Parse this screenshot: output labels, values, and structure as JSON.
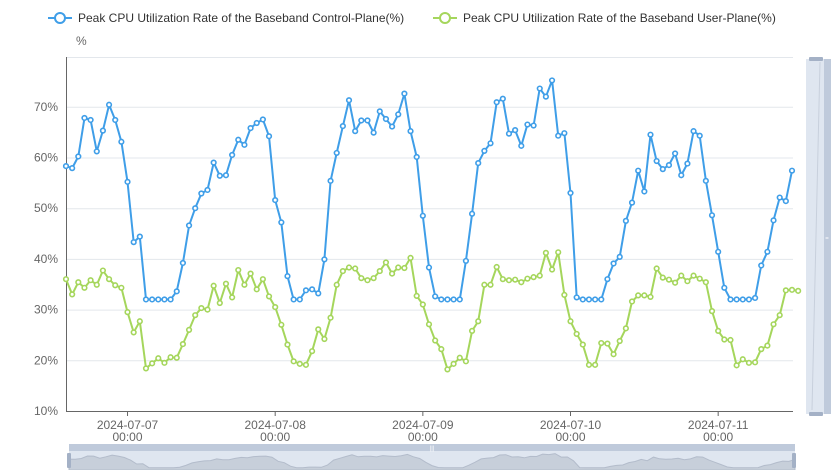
{
  "chart_data": {
    "type": "line",
    "title": "",
    "ylabel": "%",
    "xlabel": "",
    "ylim": [
      10,
      80
    ],
    "yticks": [
      "10%",
      "20%",
      "30%",
      "40%",
      "50%",
      "60%",
      "70%"
    ],
    "ytick_values": [
      10,
      20,
      30,
      40,
      50,
      60,
      70
    ],
    "grid": true,
    "legend_position": "top",
    "x_start": "2024-07-06 14:00",
    "x_interval": "1 hour",
    "xticks": [
      {
        "date": "2024-07-07",
        "time": "00:00",
        "index": 10
      },
      {
        "date": "2024-07-08",
        "time": "00:00",
        "index": 34
      },
      {
        "date": "2024-07-09",
        "time": "00:00",
        "index": 58
      },
      {
        "date": "2024-07-10",
        "time": "00:00",
        "index": 82
      },
      {
        "date": "2024-07-11",
        "time": "00:00",
        "index": 106
      }
    ],
    "series": [
      {
        "name": "Peak CPU Utilization Rate of the Baseband Control-Plane(%)",
        "color": "#3f9ee8",
        "values": [
          58.3,
          57.9,
          60.2,
          67.8,
          67.4,
          61.2,
          65.3,
          70.4,
          67.4,
          63.1,
          55.2,
          43.3,
          44.4,
          32,
          32,
          32,
          32,
          32,
          33.6,
          39.2,
          46.6,
          50,
          52.9,
          53.6,
          59,
          56.4,
          56.5,
          60.5,
          63.5,
          62.5,
          65.8,
          66.8,
          67.5,
          64.2,
          51.6,
          47.2,
          36.6,
          32,
          32,
          33.8,
          34,
          33.2,
          39.9,
          55.4,
          60.9,
          66.2,
          71.3,
          65.2,
          67.3,
          67.3,
          64.9,
          69.1,
          67.6,
          66.1,
          68.5,
          72.6,
          65.2,
          60.1,
          48.5,
          38.3,
          32.6,
          32,
          32,
          32,
          32,
          39.6,
          48.9,
          58.9,
          61.3,
          62.8,
          70.9,
          71.6,
          64.7,
          65.4,
          62.3,
          66.5,
          66.3,
          73.6,
          72,
          75.2,
          64.3,
          64.8,
          53,
          32.4,
          32,
          32,
          32,
          32,
          36,
          39.1,
          40.4,
          47.5,
          51.1,
          57.4,
          53.3,
          64.5,
          59.3,
          57.7,
          58.5,
          60.8,
          56.5,
          58.8,
          65.2,
          64.3,
          55.4,
          48.6,
          41.4,
          34.3,
          32,
          32,
          32,
          32,
          32.3,
          38.7,
          41.4,
          47.6,
          52.1,
          51.4,
          57.4
        ]
      },
      {
        "name": "Peak CPU Utilization Rate of the Baseband User-Plane(%)",
        "color": "#a5d65c",
        "values": [
          36,
          33,
          35.4,
          34.3,
          35.8,
          34.9,
          37.7,
          36,
          34.8,
          34.3,
          29.5,
          25.5,
          27.7,
          18.4,
          19.4,
          20.4,
          19.5,
          20.6,
          20.5,
          23.2,
          26,
          28.9,
          30.3,
          30,
          34.7,
          31.3,
          35.1,
          32.4,
          37.8,
          34.9,
          37.1,
          34,
          36,
          32.6,
          30.5,
          27,
          23.1,
          19.8,
          19.3,
          19.1,
          21.8,
          26.1,
          24.2,
          28.4,
          34.9,
          37.6,
          38.3,
          38.1,
          36.2,
          35.8,
          36.2,
          37.6,
          39.3,
          37.1,
          38.3,
          38.2,
          40.2,
          32.7,
          31,
          27.1,
          23.9,
          22.2,
          18.2,
          19.3,
          20.5,
          19.8,
          25.8,
          27.7,
          34.9,
          34.9,
          38.4,
          36,
          35.8,
          35.9,
          35.4,
          36.1,
          36.4,
          36.7,
          41.2,
          37.9,
          41.3,
          32.9,
          27.7,
          25.2,
          23.1,
          19.1,
          19.1,
          23.4,
          23.3,
          21.2,
          23.8,
          26.3,
          31.6,
          32.8,
          32.8,
          32.5,
          38.1,
          36.3,
          35.9,
          35.3,
          36.7,
          35.6,
          36.7,
          36.1,
          35.4,
          29.7,
          25.8,
          24.1,
          24,
          19,
          20.2,
          19.5,
          19.6,
          22.2,
          22.9,
          27.1,
          28.9,
          33.8,
          33.9,
          33.7
        ]
      }
    ]
  },
  "datazoom": {
    "x_range_percent": [
      0,
      100
    ],
    "y_range_percent": [
      0,
      100
    ]
  }
}
